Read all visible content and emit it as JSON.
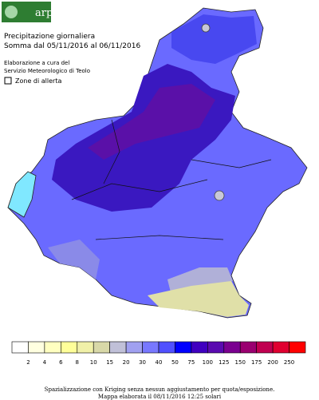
{
  "header": {
    "logo": "arpav",
    "title": "Precipitazione giornaliera",
    "subtitle": "Somma dal 05/11/2016 al 06/11/2016",
    "credit_1": "Elaborazione a cura del",
    "credit_2": "Servizio Meteorologico di Teolo"
  },
  "legend": {
    "toggle": "Zone di allerta"
  },
  "scale": {
    "thresholds": [
      2,
      4,
      6,
      8,
      10,
      15,
      20,
      30,
      40,
      50,
      75,
      100,
      125,
      150,
      175,
      200,
      250
    ],
    "colors": [
      "#ffffff",
      "#ffffe0",
      "#ffffc0",
      "#ffff99",
      "#f0f0a8",
      "#d8d8a8",
      "#c0c0d8",
      "#a0a0f0",
      "#7878ff",
      "#5050ff",
      "#0000ff",
      "#4000c0",
      "#5a0ab0",
      "#7a0090",
      "#9a0070",
      "#c00050",
      "#e00030",
      "#ff0000"
    ]
  },
  "footer": {
    "line_1": "Spazializzazione con Kriging senza nessun aggiustamento per quota/esposizione.",
    "line_2": "Mappa elaborata il 08/11/2016 12:25 solari"
  }
}
